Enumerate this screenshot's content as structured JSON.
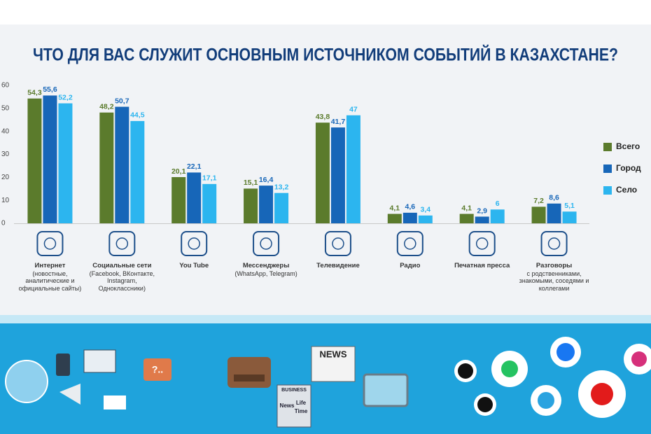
{
  "chart_data": {
    "type": "bar",
    "title": "ЧТО ДЛЯ ВАС СЛУЖИТ ОСНОВНЫМ ИСТОЧНИКОМ СОБЫТИЙ В КАЗАХСТАНЕ?",
    "categories": [
      "Интернет",
      "Социальные сети",
      "You Tube",
      "Мессенджеры",
      "Телевидение",
      "Радио",
      "Печатная пресса",
      "Разговоры"
    ],
    "category_notes": [
      "(новостные, аналитические и официальные сайты)",
      "(Facebook, ВКонтакте, Instagram, Одноклассники)",
      null,
      "(WhatsApp, Telegram)",
      null,
      null,
      null,
      "с родственниками, знакомыми, соседями и коллегами"
    ],
    "series": [
      {
        "name": "Всего",
        "color": "#5b7b2c",
        "values": [
          54.3,
          48.2,
          20.1,
          15.1,
          43.8,
          4.1,
          4.1,
          7.2
        ],
        "value_labels": [
          "54,3",
          "48,2",
          "20,1",
          "15,1",
          "43,8",
          "4,1",
          "4,1",
          "7,2"
        ]
      },
      {
        "name": "Город",
        "color": "#1766b8",
        "values": [
          55.6,
          50.7,
          22.1,
          16.4,
          41.7,
          4.6,
          2.9,
          8.6
        ],
        "value_labels": [
          "55,6",
          "50,7",
          "22,1",
          "16,4",
          "41,7",
          "4,6",
          "2,9",
          "8,6"
        ]
      },
      {
        "name": "Село",
        "color": "#2cb5ef",
        "values": [
          52.2,
          44.5,
          17.1,
          13.2,
          47,
          3.4,
          6,
          5.1
        ],
        "value_labels": [
          "52,2",
          "44,5",
          "17,1",
          "13,2",
          "47",
          "3,4",
          "6",
          "5,1"
        ]
      }
    ],
    "ylim": [
      0,
      60
    ],
    "yticks": [
      0,
      10,
      20,
      30,
      40,
      50,
      60
    ],
    "grid": false,
    "legend": "right"
  },
  "decor": {
    "news": "NEWS",
    "business": "BUSINESS",
    "paper_words": [
      "News",
      "Life",
      "Time"
    ],
    "bubble": "?.."
  }
}
